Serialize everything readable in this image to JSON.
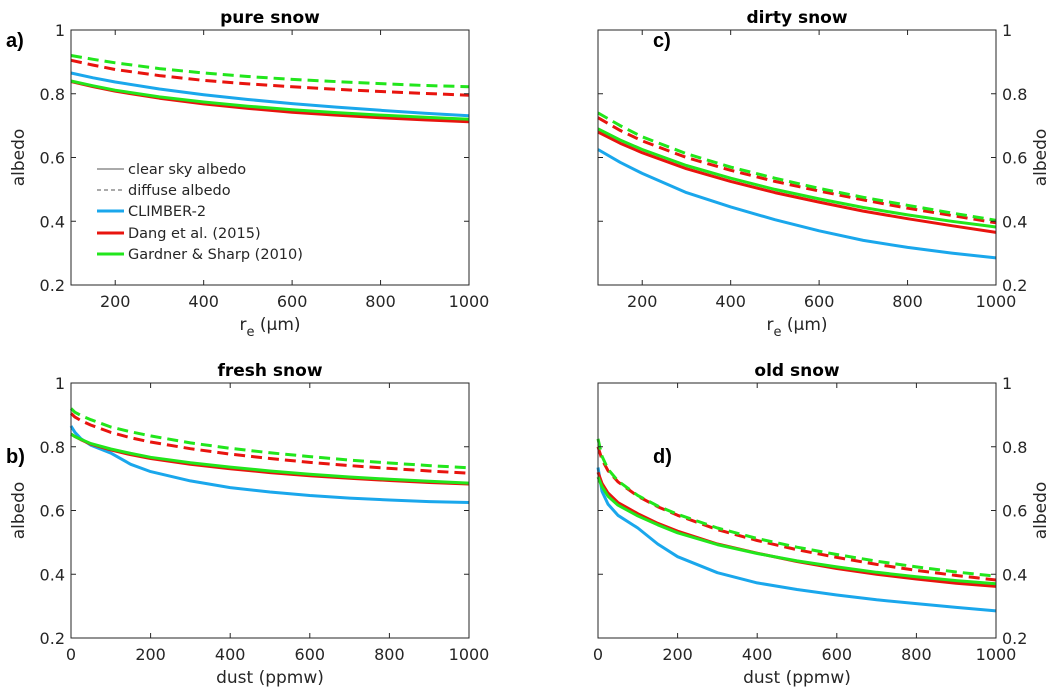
{
  "colors": {
    "climber": "#1aa7ec",
    "dang": "#e8140e",
    "gardner": "#22e61c",
    "axis": "#262626"
  },
  "chart_data": [
    {
      "type": "line",
      "panel_label": "a)",
      "title": "pure snow",
      "xlabel": "r",
      "xlabel_sub": "e",
      "xlabel_unit": " (μm)",
      "ylabel": "albedo",
      "yaxis_side": "left",
      "xlim": [
        100,
        1000
      ],
      "ylim": [
        0.2,
        1
      ],
      "xticks": [
        200,
        400,
        600,
        800,
        1000
      ],
      "yticks": [
        0.2,
        0.4,
        0.6,
        0.8,
        1
      ],
      "grid": false,
      "legend": {
        "position": "left",
        "entries": [
          "clear sky albedo",
          "diffuse albedo",
          "CLIMBER-2",
          "Dang et al. (2015)",
          "Gardner & Sharp (2010)"
        ]
      },
      "x": [
        100,
        150,
        200,
        300,
        400,
        500,
        600,
        700,
        800,
        900,
        1000
      ],
      "series": [
        {
          "name": "CLIMBER-2",
          "albedo": "clear sky albedo",
          "color": "#1aa7ec",
          "values": [
            0.865,
            0.85,
            0.837,
            0.815,
            0.797,
            0.782,
            0.769,
            0.758,
            0.748,
            0.739,
            0.731
          ]
        },
        {
          "name": "Dang et al. (2015)",
          "albedo": "clear sky albedo",
          "color": "#e8140e",
          "values": [
            0.838,
            0.822,
            0.808,
            0.786,
            0.768,
            0.754,
            0.742,
            0.733,
            0.725,
            0.718,
            0.712
          ]
        },
        {
          "name": "Gardner & Sharp (2010)",
          "albedo": "clear sky albedo",
          "color": "#22e61c",
          "values": [
            0.84,
            0.825,
            0.811,
            0.79,
            0.774,
            0.761,
            0.75,
            0.741,
            0.733,
            0.726,
            0.72
          ]
        },
        {
          "name": "Dang et al. (2015)",
          "albedo": "diffuse albedo",
          "color": "#e8140e",
          "values": [
            0.905,
            0.89,
            0.876,
            0.857,
            0.842,
            0.831,
            0.822,
            0.814,
            0.807,
            0.801,
            0.795
          ]
        },
        {
          "name": "Gardner & Sharp (2010)",
          "albedo": "diffuse albedo",
          "color": "#22e61c",
          "values": [
            0.92,
            0.908,
            0.897,
            0.879,
            0.865,
            0.854,
            0.845,
            0.838,
            0.832,
            0.826,
            0.822
          ]
        }
      ]
    },
    {
      "type": "line",
      "panel_label": "c)",
      "title": "dirty snow",
      "xlabel": "r",
      "xlabel_sub": "e",
      "xlabel_unit": " (μm)",
      "ylabel": "albedo",
      "yaxis_side": "right",
      "xlim": [
        100,
        1000
      ],
      "ylim": [
        0.2,
        1
      ],
      "xticks": [
        200,
        400,
        600,
        800,
        1000
      ],
      "yticks": [
        0.2,
        0.4,
        0.6,
        0.8,
        1
      ],
      "grid": false,
      "x": [
        100,
        150,
        200,
        300,
        400,
        500,
        600,
        700,
        800,
        900,
        1000
      ],
      "series": [
        {
          "name": "CLIMBER-2",
          "albedo": "clear sky albedo",
          "color": "#1aa7ec",
          "values": [
            0.625,
            0.585,
            0.55,
            0.49,
            0.445,
            0.405,
            0.37,
            0.34,
            0.318,
            0.3,
            0.285
          ]
        },
        {
          "name": "Dang et al. (2015)",
          "albedo": "clear sky albedo",
          "color": "#e8140e",
          "values": [
            0.68,
            0.645,
            0.615,
            0.565,
            0.525,
            0.49,
            0.46,
            0.432,
            0.408,
            0.386,
            0.365
          ]
        },
        {
          "name": "Gardner & Sharp (2010)",
          "albedo": "clear sky albedo",
          "color": "#22e61c",
          "values": [
            0.69,
            0.655,
            0.625,
            0.575,
            0.535,
            0.5,
            0.47,
            0.443,
            0.42,
            0.4,
            0.382
          ]
        },
        {
          "name": "Dang et al. (2015)",
          "albedo": "diffuse albedo",
          "color": "#e8140e",
          "values": [
            0.725,
            0.685,
            0.652,
            0.6,
            0.56,
            0.525,
            0.495,
            0.467,
            0.441,
            0.418,
            0.395
          ]
        },
        {
          "name": "Gardner & Sharp (2010)",
          "albedo": "diffuse albedo",
          "color": "#22e61c",
          "values": [
            0.74,
            0.7,
            0.665,
            0.612,
            0.57,
            0.535,
            0.503,
            0.475,
            0.45,
            0.426,
            0.403
          ]
        }
      ]
    },
    {
      "type": "line",
      "panel_label": "b)",
      "title": "fresh snow",
      "xlabel": "dust (ppmw)",
      "ylabel": "albedo",
      "yaxis_side": "left",
      "xlim": [
        0,
        1000
      ],
      "ylim": [
        0.2,
        1
      ],
      "xticks": [
        0,
        200,
        400,
        600,
        800,
        1000
      ],
      "yticks": [
        0.2,
        0.4,
        0.6,
        0.8,
        1
      ],
      "grid": false,
      "x": [
        0,
        10,
        25,
        50,
        100,
        150,
        200,
        300,
        400,
        500,
        600,
        700,
        800,
        900,
        1000
      ],
      "series": [
        {
          "name": "CLIMBER-2",
          "albedo": "clear sky albedo",
          "color": "#1aa7ec",
          "values": [
            0.865,
            0.845,
            0.825,
            0.805,
            0.78,
            0.745,
            0.722,
            0.693,
            0.672,
            0.658,
            0.647,
            0.639,
            0.633,
            0.628,
            0.625
          ]
        },
        {
          "name": "Dang et al. (2015)",
          "albedo": "clear sky albedo",
          "color": "#e8140e",
          "values": [
            0.84,
            0.832,
            0.822,
            0.808,
            0.79,
            0.775,
            0.763,
            0.745,
            0.731,
            0.719,
            0.709,
            0.701,
            0.694,
            0.688,
            0.683
          ]
        },
        {
          "name": "Gardner & Sharp (2010)",
          "albedo": "clear sky albedo",
          "color": "#22e61c",
          "values": [
            0.84,
            0.832,
            0.823,
            0.81,
            0.793,
            0.779,
            0.767,
            0.75,
            0.736,
            0.724,
            0.714,
            0.705,
            0.698,
            0.692,
            0.686
          ]
        },
        {
          "name": "Dang et al. (2015)",
          "albedo": "diffuse albedo",
          "color": "#e8140e",
          "values": [
            0.905,
            0.893,
            0.882,
            0.868,
            0.845,
            0.828,
            0.815,
            0.794,
            0.777,
            0.763,
            0.751,
            0.741,
            0.732,
            0.724,
            0.717
          ]
        },
        {
          "name": "Gardner & Sharp (2010)",
          "albedo": "diffuse albedo",
          "color": "#22e61c",
          "values": [
            0.92,
            0.908,
            0.898,
            0.885,
            0.862,
            0.847,
            0.834,
            0.812,
            0.795,
            0.781,
            0.769,
            0.758,
            0.749,
            0.741,
            0.734
          ]
        }
      ]
    },
    {
      "type": "line",
      "panel_label": "d)",
      "title": "old snow",
      "xlabel": "dust (ppmw)",
      "ylabel": "albedo",
      "yaxis_side": "right",
      "xlim": [
        0,
        1000
      ],
      "ylim": [
        0.2,
        1
      ],
      "xticks": [
        0,
        200,
        400,
        600,
        800,
        1000
      ],
      "yticks": [
        0.2,
        0.4,
        0.6,
        0.8,
        1
      ],
      "grid": false,
      "x": [
        0,
        10,
        25,
        50,
        100,
        150,
        200,
        300,
        400,
        500,
        600,
        700,
        800,
        900,
        1000
      ],
      "series": [
        {
          "name": "CLIMBER-2",
          "albedo": "clear sky albedo",
          "color": "#1aa7ec",
          "values": [
            0.735,
            0.66,
            0.62,
            0.585,
            0.545,
            0.495,
            0.455,
            0.405,
            0.373,
            0.352,
            0.335,
            0.32,
            0.308,
            0.296,
            0.285
          ]
        },
        {
          "name": "Dang et al. (2015)",
          "albedo": "clear sky albedo",
          "color": "#e8140e",
          "values": [
            0.72,
            0.685,
            0.655,
            0.625,
            0.59,
            0.56,
            0.535,
            0.495,
            0.466,
            0.44,
            0.418,
            0.4,
            0.385,
            0.372,
            0.362
          ]
        },
        {
          "name": "Gardner & Sharp (2010)",
          "albedo": "clear sky albedo",
          "color": "#22e61c",
          "values": [
            0.705,
            0.675,
            0.645,
            0.617,
            0.583,
            0.555,
            0.53,
            0.493,
            0.465,
            0.442,
            0.423,
            0.406,
            0.392,
            0.38,
            0.37
          ]
        },
        {
          "name": "Dang et al. (2015)",
          "albedo": "diffuse albedo",
          "color": "#e8140e",
          "values": [
            0.8,
            0.76,
            0.725,
            0.69,
            0.645,
            0.612,
            0.585,
            0.54,
            0.506,
            0.477,
            0.453,
            0.431,
            0.412,
            0.396,
            0.382
          ]
        },
        {
          "name": "Gardner & Sharp (2010)",
          "albedo": "diffuse albedo",
          "color": "#22e61c",
          "values": [
            0.825,
            0.77,
            0.73,
            0.693,
            0.647,
            0.614,
            0.588,
            0.545,
            0.512,
            0.485,
            0.462,
            0.441,
            0.423,
            0.407,
            0.394
          ]
        }
      ]
    }
  ]
}
